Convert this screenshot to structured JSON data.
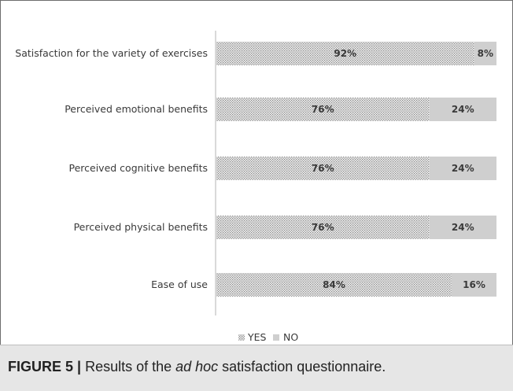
{
  "caption": {
    "label": "FIGURE 5 |",
    "text_before": " Results of the ",
    "text_italic": "ad hoc",
    "text_after": " satisfaction questionnaire."
  },
  "colors": {
    "yes": "#bdbdbd",
    "no": "#cfcfcf",
    "axis": "#b3b3b3",
    "text": "#3a3a3a"
  },
  "chart_data": {
    "type": "bar",
    "orientation": "horizontal",
    "stacked": "percent",
    "categories": [
      "Satisfaction for the variety of exercises",
      "Perceived emotional benefits",
      "Perceived cognitive benefits",
      "Perceived physical benefits",
      "Ease of use"
    ],
    "series": [
      {
        "name": "YES",
        "values": [
          92,
          76,
          76,
          76,
          84
        ],
        "labels": [
          "92%",
          "76%",
          "76%",
          "76%",
          "84%"
        ],
        "pattern": "dotted"
      },
      {
        "name": "NO",
        "values": [
          8,
          24,
          24,
          24,
          16
        ],
        "labels": [
          "8%",
          "24%",
          "24%",
          "24%",
          "16%"
        ],
        "pattern": "solid"
      }
    ],
    "xlim": [
      0,
      100
    ],
    "grid": false,
    "legend": "bottom-center"
  }
}
